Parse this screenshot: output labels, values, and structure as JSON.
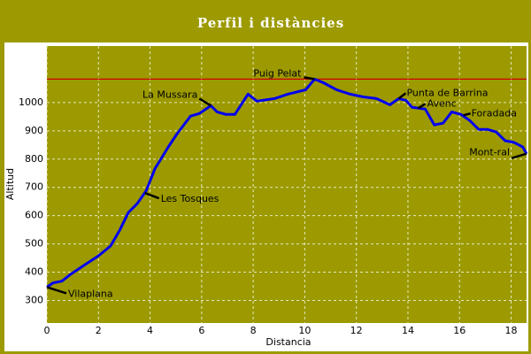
{
  "chart_data": {
    "type": "line",
    "title": "Perfil i distàncies",
    "x_label": "Distancia",
    "y_label": "Altitud",
    "x": [
      0,
      0.24,
      0.58,
      0.93,
      1.44,
      1.96,
      2.3,
      2.47,
      2.82,
      3.16,
      3.5,
      3.85,
      4.19,
      4.71,
      5.05,
      5.57,
      5.91,
      6.36,
      6.6,
      6.94,
      7.29,
      7.8,
      8.14,
      8.83,
      9.35,
      10.03,
      10.38,
      10.72,
      11.24,
      11.75,
      12.27,
      12.78,
      13.3,
      13.64,
      13.92,
      14.16,
      14.67,
      15.02,
      15.36,
      15.7,
      16.05,
      16.39,
      16.74,
      17.08,
      17.42,
      17.77,
      18.11,
      18.45,
      18.6
    ],
    "series": [
      {
        "color": "#0000ee",
        "values": [
          347,
          362,
          368,
          393,
          424,
          455,
          480,
          493,
          548,
          611,
          642,
          688,
          766,
          843,
          890,
          952,
          961,
          989,
          967,
          958,
          958,
          1030,
          1005,
          1014,
          1030,
          1045,
          1083,
          1070,
          1045,
          1030,
          1020,
          1014,
          992,
          1014,
          1008,
          983,
          977,
          921,
          927,
          967,
          958,
          937,
          905,
          905,
          896,
          865,
          859,
          843,
          819
        ]
      }
    ],
    "xlim": [
      0,
      18.6
    ],
    "ylim": [
      220,
      1200
    ],
    "xticks": [
      0,
      2,
      4,
      6,
      8,
      10,
      12,
      14,
      16,
      18
    ],
    "yticks": [
      300,
      400,
      500,
      600,
      700,
      800,
      900,
      1000
    ],
    "grid": true,
    "max_line": 1083,
    "max_line_color": "#cc0000",
    "annotations": [
      {
        "text": "Vilaplana",
        "x": 0,
        "y": 347
      },
      {
        "text": "Les Tosques",
        "x": 3.8,
        "y": 680
      },
      {
        "text": "La Mussara",
        "x": 6.36,
        "y": 989
      },
      {
        "text": "Puig Pelat",
        "x": 10.38,
        "y": 1083
      },
      {
        "text": "Punta de Barrina",
        "x": 13.64,
        "y": 1014
      },
      {
        "text": "Avenc",
        "x": 14.4,
        "y": 980
      },
      {
        "text": "Foradada",
        "x": 16.15,
        "y": 955
      },
      {
        "text": "Mont-ral",
        "x": 18.6,
        "y": 819
      }
    ]
  }
}
